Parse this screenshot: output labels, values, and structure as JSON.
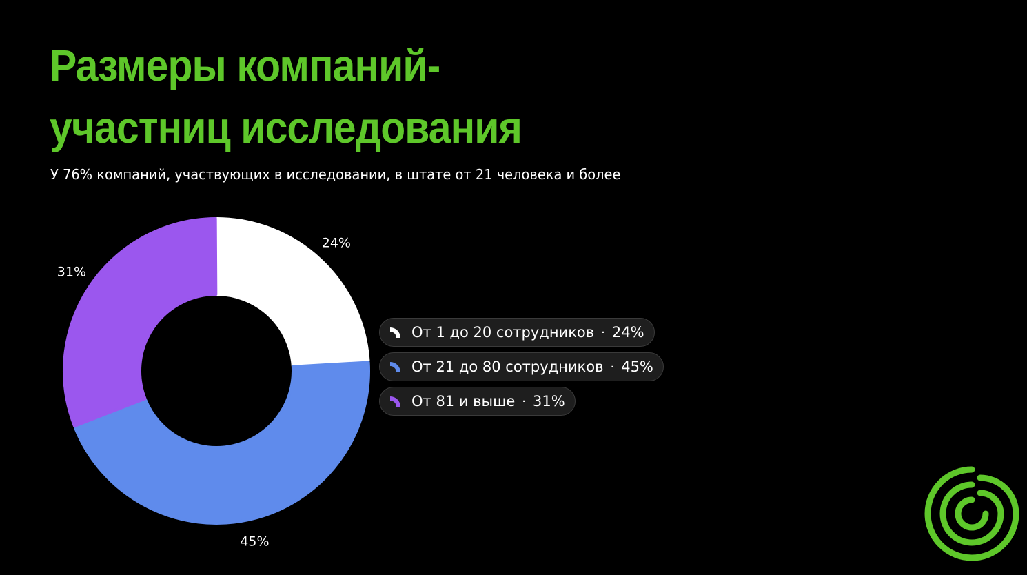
{
  "title_lines": [
    "Размеры компаний-",
    "участниц исследования"
  ],
  "subtitle": "У 76% компаний, участвующих в исследовании, в штате от 21 человека и более",
  "colors": {
    "background": "#000000",
    "title": "#5ec72a",
    "text": "#ffffff",
    "legend_bg": "#1e1e1e",
    "logo": "#5ec72a"
  },
  "logo_icon": "spiral-logo-icon",
  "chart_data": {
    "type": "pie",
    "variant": "donut",
    "title": "",
    "legend_position": "right",
    "slices": [
      {
        "label": "От 1 до 20 сотрудников",
        "value": 24,
        "value_label": "24%",
        "color": "#ffffff"
      },
      {
        "label": "От 21 до 80 сотрудников",
        "value": 45,
        "value_label": "45%",
        "color": "#5f8bec"
      },
      {
        "label": "От 81 и выше",
        "value": 31,
        "value_label": "31%",
        "color": "#9b57ee"
      }
    ]
  }
}
